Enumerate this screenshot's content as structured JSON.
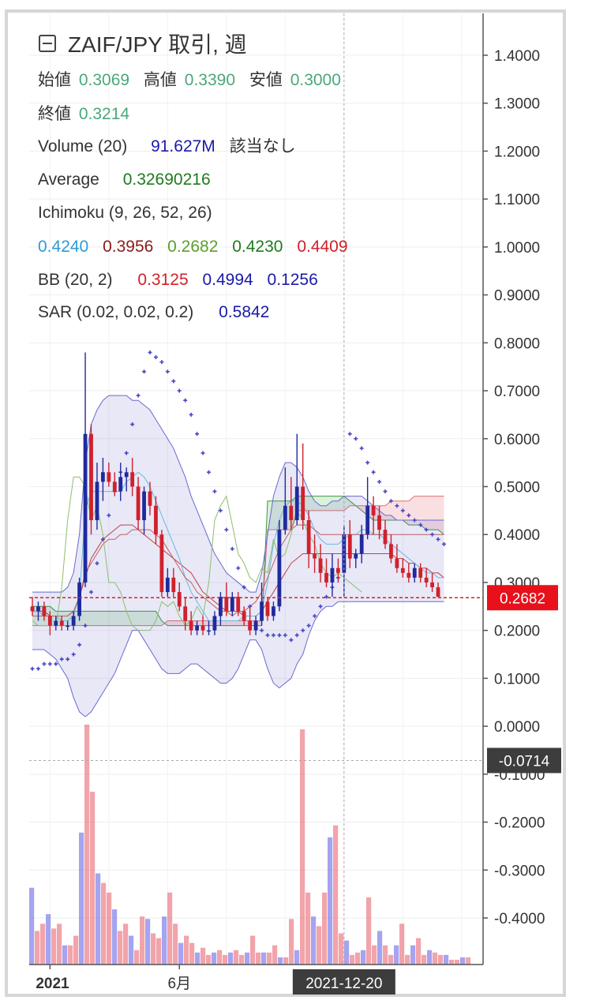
{
  "header": {
    "title": "ZAIF/JPY 取引, 週",
    "collapse_icon": "minus-square-icon"
  },
  "legend": {
    "ohlc": {
      "open_label": "始値",
      "open_value": "0.3069",
      "high_label": "高値",
      "high_value": "0.3390",
      "low_label": "安値",
      "low_value": "0.3000",
      "close_label": "終値",
      "close_value": "0.3214"
    },
    "volume": {
      "label": "Volume (20)",
      "value": "91.627M",
      "extra": "該当なし"
    },
    "average": {
      "label": "Average",
      "value": "0.32690216"
    },
    "ichimoku": {
      "label": "Ichimoku (9, 26, 52, 26)",
      "values": [
        "0.4240",
        "0.3956",
        "0.2682",
        "0.4230",
        "0.4409"
      ]
    },
    "bb": {
      "label": "BB (20, 2)",
      "values": [
        "0.3125",
        "0.4994",
        "0.1256"
      ]
    },
    "sar": {
      "label": "SAR (0.02, 0.02, 0.2)",
      "value": "0.5842"
    }
  },
  "colors": {
    "up": "#1f2a9e",
    "down": "#d0212b",
    "ohlc_value": "#4aa87a",
    "volume_value": "#1a1aa8",
    "average_value": "#1f7a1f",
    "ichimoku": [
      "#2e9ad8",
      "#8b1a1a",
      "#5aa02c",
      "#1f7a1f",
      "#d0212b"
    ],
    "bb_values": [
      "#d0212b",
      "#1a1aa8",
      "#1a1aa8"
    ],
    "sar_value": "#1a1aa8",
    "current_price_bg": "#e8101a",
    "crosshair_bg": "#3d3d3d"
  },
  "chart_data": {
    "type": "candlestick",
    "title": "ZAIF/JPY 取引, 週",
    "y_axis": {
      "ticks": [
        "1.4000",
        "1.3000",
        "1.2000",
        "1.1000",
        "1.0000",
        "0.9000",
        "0.8000",
        "0.7000",
        "0.6000",
        "0.5000",
        "0.4000",
        "0.3000",
        "0.2000",
        "0.1000",
        "0.0000",
        "-0.1000",
        "-0.2000",
        "-0.3000",
        "-0.4000"
      ],
      "tick_values": [
        1.4,
        1.3,
        1.2,
        1.1,
        1.0,
        0.9,
        0.8,
        0.7,
        0.6,
        0.5,
        0.4,
        0.3,
        0.2,
        0.1,
        0.0,
        -0.1,
        -0.2,
        -0.3,
        -0.4
      ],
      "range": [
        -0.49,
        1.5
      ]
    },
    "x_axis": {
      "labels": [
        {
          "text": "2021",
          "bar": 3
        },
        {
          "text": "6月",
          "bar": 25
        }
      ],
      "crosshair_label": "2021-12-20",
      "crosshair_bar": 53
    },
    "current_price": {
      "value": 0.2682,
      "label": "0.2682"
    },
    "crosshair_price": {
      "value": -0.0714,
      "label": "-0.0714"
    },
    "candles": [
      [
        0.25,
        0.27,
        0.23,
        0.24
      ],
      [
        0.24,
        0.26,
        0.22,
        0.25
      ],
      [
        0.25,
        0.26,
        0.22,
        0.23
      ],
      [
        0.23,
        0.24,
        0.19,
        0.21
      ],
      [
        0.21,
        0.23,
        0.2,
        0.22
      ],
      [
        0.22,
        0.23,
        0.2,
        0.21
      ],
      [
        0.21,
        0.22,
        0.2,
        0.21
      ],
      [
        0.21,
        0.24,
        0.2,
        0.23
      ],
      [
        0.23,
        0.31,
        0.22,
        0.3
      ],
      [
        0.3,
        0.78,
        0.29,
        0.61
      ],
      [
        0.61,
        0.63,
        0.4,
        0.43
      ],
      [
        0.43,
        0.55,
        0.41,
        0.51
      ],
      [
        0.51,
        0.56,
        0.47,
        0.53
      ],
      [
        0.53,
        0.55,
        0.5,
        0.51
      ],
      [
        0.51,
        0.53,
        0.48,
        0.49
      ],
      [
        0.49,
        0.55,
        0.47,
        0.52
      ],
      [
        0.52,
        0.54,
        0.49,
        0.53
      ],
      [
        0.53,
        0.56,
        0.48,
        0.5
      ],
      [
        0.5,
        0.52,
        0.41,
        0.43
      ],
      [
        0.43,
        0.5,
        0.4,
        0.49
      ],
      [
        0.49,
        0.51,
        0.44,
        0.46
      ],
      [
        0.46,
        0.48,
        0.38,
        0.4
      ],
      [
        0.4,
        0.41,
        0.27,
        0.28
      ],
      [
        0.28,
        0.33,
        0.27,
        0.31
      ],
      [
        0.31,
        0.33,
        0.27,
        0.28
      ],
      [
        0.28,
        0.3,
        0.24,
        0.25
      ],
      [
        0.25,
        0.27,
        0.2,
        0.22
      ],
      [
        0.22,
        0.24,
        0.19,
        0.2
      ],
      [
        0.2,
        0.22,
        0.19,
        0.21
      ],
      [
        0.21,
        0.23,
        0.19,
        0.2
      ],
      [
        0.2,
        0.22,
        0.19,
        0.2
      ],
      [
        0.2,
        0.24,
        0.19,
        0.23
      ],
      [
        0.23,
        0.28,
        0.21,
        0.27
      ],
      [
        0.27,
        0.3,
        0.23,
        0.24
      ],
      [
        0.24,
        0.28,
        0.23,
        0.27
      ],
      [
        0.27,
        0.28,
        0.23,
        0.24
      ],
      [
        0.24,
        0.25,
        0.21,
        0.22
      ],
      [
        0.22,
        0.25,
        0.19,
        0.2
      ],
      [
        0.2,
        0.23,
        0.19,
        0.22
      ],
      [
        0.22,
        0.3,
        0.21,
        0.26
      ],
      [
        0.26,
        0.27,
        0.22,
        0.23
      ],
      [
        0.23,
        0.26,
        0.22,
        0.25
      ],
      [
        0.25,
        0.43,
        0.24,
        0.41
      ],
      [
        0.41,
        0.54,
        0.4,
        0.46
      ],
      [
        0.46,
        0.52,
        0.41,
        0.43
      ],
      [
        0.43,
        0.61,
        0.42,
        0.5
      ],
      [
        0.5,
        0.59,
        0.41,
        0.43
      ],
      [
        0.43,
        0.45,
        0.33,
        0.36
      ],
      [
        0.36,
        0.4,
        0.32,
        0.35
      ],
      [
        0.35,
        0.38,
        0.3,
        0.32
      ],
      [
        0.32,
        0.35,
        0.29,
        0.3
      ],
      [
        0.3,
        0.36,
        0.27,
        0.33
      ],
      [
        0.33,
        0.35,
        0.3,
        0.32
      ],
      [
        0.32,
        0.42,
        0.27,
        0.4
      ],
      [
        0.4,
        0.43,
        0.33,
        0.35
      ],
      [
        0.35,
        0.37,
        0.33,
        0.36
      ],
      [
        0.36,
        0.42,
        0.34,
        0.4
      ],
      [
        0.4,
        0.52,
        0.39,
        0.46
      ],
      [
        0.46,
        0.48,
        0.4,
        0.44
      ],
      [
        0.44,
        0.46,
        0.39,
        0.41
      ],
      [
        0.41,
        0.43,
        0.37,
        0.38
      ],
      [
        0.38,
        0.4,
        0.34,
        0.35
      ],
      [
        0.35,
        0.38,
        0.32,
        0.33
      ],
      [
        0.33,
        0.35,
        0.31,
        0.32
      ],
      [
        0.32,
        0.34,
        0.3,
        0.31
      ],
      [
        0.31,
        0.34,
        0.3,
        0.33
      ],
      [
        0.33,
        0.34,
        0.3,
        0.31
      ],
      [
        0.31,
        0.33,
        0.29,
        0.3
      ],
      [
        0.3,
        0.32,
        0.28,
        0.29
      ],
      [
        0.29,
        0.3,
        0.27,
        0.27
      ]
    ],
    "volume": [
      0.32,
      0.14,
      0.17,
      0.21,
      0.15,
      0.17,
      0.08,
      0.08,
      0.12,
      0.55,
      1.0,
      0.72,
      0.38,
      0.34,
      0.3,
      0.23,
      0.14,
      0.17,
      0.12,
      0.06,
      0.2,
      0.19,
      0.13,
      0.11,
      0.2,
      0.3,
      0.17,
      0.09,
      0.12,
      0.09,
      0.05,
      0.07,
      0.04,
      0.05,
      0.06,
      0.04,
      0.05,
      0.06,
      0.04,
      0.05,
      0.12,
      0.05,
      0.05,
      0.05,
      0.08,
      0.03,
      0.03,
      0.19,
      0.06,
      0.98,
      0.3,
      0.2,
      0.16,
      0.3,
      0.53,
      0.58,
      0.13,
      0.1,
      0.04,
      0.05,
      0.06,
      0.28,
      0.08,
      0.14,
      0.08,
      0.04,
      0.08,
      0.17,
      0.04,
      0.08,
      0.11,
      0.04,
      0.06,
      0.05,
      0.04,
      0.04,
      0.02,
      0.02,
      0.03,
      0.03
    ],
    "sar": [
      0.12,
      0.12,
      0.13,
      0.13,
      0.13,
      0.14,
      0.14,
      0.15,
      0.17,
      0.21,
      0.28,
      0.34,
      0.39,
      0.44,
      0.49,
      0.53,
      0.57,
      0.63,
      0.69,
      0.74,
      0.78,
      0.77,
      0.76,
      0.74,
      0.72,
      0.7,
      0.68,
      0.65,
      0.61,
      0.57,
      0.53,
      0.49,
      0.45,
      0.41,
      0.37,
      0.33,
      0.29,
      0.25,
      0.21,
      0.2,
      0.19,
      0.19,
      0.19,
      0.19,
      0.18,
      0.19,
      0.2,
      0.21,
      0.23,
      0.25,
      0.27,
      0.29,
      0.31,
      0.33,
      0.61,
      0.6,
      0.58,
      0.55,
      0.53,
      0.51,
      0.49,
      0.47,
      0.46,
      0.45,
      0.44,
      0.43,
      0.42,
      0.41,
      0.4,
      0.39,
      0.38
    ],
    "bb_upper": [
      0.28,
      0.28,
      0.28,
      0.28,
      0.28,
      0.28,
      0.29,
      0.32,
      0.4,
      0.55,
      0.63,
      0.66,
      0.68,
      0.69,
      0.69,
      0.69,
      0.69,
      0.68,
      0.68,
      0.67,
      0.66,
      0.64,
      0.62,
      0.6,
      0.58,
      0.55,
      0.52,
      0.48,
      0.45,
      0.42,
      0.39,
      0.36,
      0.34,
      0.32,
      0.31,
      0.3,
      0.29,
      0.28,
      0.28,
      0.32,
      0.4,
      0.48,
      0.52,
      0.55,
      0.55,
      0.54,
      0.52,
      0.49,
      0.47,
      0.46,
      0.46,
      0.47,
      0.47,
      0.48,
      0.48,
      0.48,
      0.48,
      0.47,
      0.46,
      0.45,
      0.44,
      0.44,
      0.43,
      0.43,
      0.43,
      0.43,
      0.43,
      0.43,
      0.43,
      0.43,
      0.43
    ],
    "bb_mid": [
      0.24,
      0.24,
      0.24,
      0.23,
      0.23,
      0.23,
      0.23,
      0.24,
      0.27,
      0.31,
      0.35,
      0.37,
      0.39,
      0.4,
      0.41,
      0.42,
      0.42,
      0.42,
      0.41,
      0.4,
      0.39,
      0.38,
      0.37,
      0.36,
      0.35,
      0.34,
      0.33,
      0.32,
      0.3,
      0.28,
      0.27,
      0.26,
      0.25,
      0.24,
      0.24,
      0.24,
      0.23,
      0.23,
      0.23,
      0.24,
      0.26,
      0.28,
      0.3,
      0.32,
      0.34,
      0.35,
      0.36,
      0.36,
      0.36,
      0.36,
      0.36,
      0.36,
      0.36,
      0.36,
      0.36,
      0.36,
      0.36,
      0.36,
      0.36,
      0.36,
      0.36,
      0.36,
      0.35,
      0.35,
      0.34,
      0.34,
      0.33,
      0.33,
      0.32,
      0.32,
      0.31
    ],
    "bb_lower": [
      0.16,
      0.16,
      0.16,
      0.15,
      0.14,
      0.12,
      0.1,
      0.06,
      0.03,
      0.02,
      0.03,
      0.05,
      0.07,
      0.09,
      0.11,
      0.14,
      0.17,
      0.2,
      0.2,
      0.18,
      0.16,
      0.14,
      0.12,
      0.11,
      0.11,
      0.11,
      0.12,
      0.13,
      0.13,
      0.12,
      0.11,
      0.1,
      0.09,
      0.09,
      0.1,
      0.12,
      0.15,
      0.18,
      0.18,
      0.16,
      0.12,
      0.09,
      0.08,
      0.09,
      0.1,
      0.13,
      0.15,
      0.19,
      0.22,
      0.24,
      0.25,
      0.25,
      0.26,
      0.26,
      0.26,
      0.26,
      0.26,
      0.26,
      0.26,
      0.26,
      0.26,
      0.26,
      0.26,
      0.26,
      0.26,
      0.26,
      0.26,
      0.26,
      0.26,
      0.26,
      0.26
    ],
    "cloud_a": [
      0.25,
      0.25,
      0.25,
      0.25,
      0.24,
      0.24,
      0.24,
      0.24,
      0.24,
      0.24,
      0.24,
      0.24,
      0.24,
      0.24,
      0.24,
      0.24,
      0.24,
      0.24,
      0.24,
      0.24,
      0.24,
      0.24,
      0.22,
      0.21,
      0.21,
      0.21,
      0.21,
      0.21,
      0.21,
      0.21,
      0.21,
      0.21,
      0.21,
      0.21,
      0.21,
      0.21,
      0.21,
      0.21,
      0.21,
      0.21,
      0.47,
      0.47,
      0.47,
      0.47,
      0.47,
      0.48,
      0.48,
      0.48,
      0.48,
      0.48,
      0.48,
      0.48,
      0.48,
      0.48,
      0.47,
      0.46,
      0.45,
      0.44,
      0.43,
      0.43,
      0.43,
      0.43,
      0.43,
      0.43,
      0.42,
      0.42,
      0.42,
      0.41,
      0.41,
      0.41,
      0.4
    ],
    "cloud_b": [
      0.21,
      0.21,
      0.21,
      0.21,
      0.21,
      0.21,
      0.21,
      0.21,
      0.21,
      0.21,
      0.21,
      0.21,
      0.21,
      0.21,
      0.21,
      0.21,
      0.21,
      0.21,
      0.21,
      0.21,
      0.21,
      0.21,
      0.21,
      0.22,
      0.22,
      0.22,
      0.22,
      0.22,
      0.22,
      0.22,
      0.22,
      0.22,
      0.22,
      0.22,
      0.22,
      0.22,
      0.22,
      0.22,
      0.22,
      0.22,
      0.41,
      0.41,
      0.41,
      0.41,
      0.41,
      0.45,
      0.45,
      0.45,
      0.45,
      0.45,
      0.45,
      0.45,
      0.45,
      0.45,
      0.46,
      0.46,
      0.46,
      0.46,
      0.46,
      0.46,
      0.46,
      0.47,
      0.47,
      0.47,
      0.47,
      0.48,
      0.48,
      0.48,
      0.48,
      0.48,
      0.48
    ],
    "tenkan": [
      0.24,
      0.24,
      0.23,
      0.23,
      0.23,
      0.22,
      0.22,
      0.23,
      0.27,
      0.45,
      0.49,
      0.49,
      0.49,
      0.49,
      0.49,
      0.49,
      0.51,
      0.52,
      0.53,
      0.52,
      0.5,
      0.47,
      0.44,
      0.41,
      0.38,
      0.35,
      0.31,
      0.28,
      0.26,
      0.24,
      0.22,
      0.22,
      0.22,
      0.22,
      0.22,
      0.22,
      0.23,
      0.23,
      0.23,
      0.24,
      0.3,
      0.38,
      0.43,
      0.46,
      0.47,
      0.47,
      0.46,
      0.44,
      0.41,
      0.39,
      0.38,
      0.38,
      0.38,
      0.39,
      0.4,
      0.4,
      0.41,
      0.41,
      0.4,
      0.4,
      0.39,
      0.38,
      0.37,
      0.36,
      0.35,
      0.34,
      0.33,
      0.32,
      0.32,
      0.31,
      0.31
    ],
    "kijun": [
      0.23,
      0.23,
      0.23,
      0.23,
      0.23,
      0.23,
      0.23,
      0.24,
      0.27,
      0.32,
      0.34,
      0.36,
      0.38,
      0.39,
      0.39,
      0.4,
      0.4,
      0.41,
      0.41,
      0.41,
      0.41,
      0.4,
      0.39,
      0.37,
      0.35,
      0.33,
      0.31,
      0.3,
      0.28,
      0.27,
      0.26,
      0.25,
      0.24,
      0.24,
      0.23,
      0.24,
      0.24,
      0.25,
      0.26,
      0.28,
      0.31,
      0.34,
      0.37,
      0.39,
      0.41,
      0.42,
      0.42,
      0.42,
      0.41,
      0.4,
      0.4,
      0.4,
      0.4,
      0.4,
      0.4,
      0.4,
      0.4,
      0.4,
      0.4,
      0.4,
      0.4,
      0.4,
      0.4,
      0.4,
      0.4,
      0.4,
      0.4,
      0.4,
      0.4,
      0.4,
      0.4
    ],
    "chikou": [
      0.22,
      0.21,
      0.21,
      0.21,
      0.21,
      0.29,
      0.43,
      0.52,
      0.52,
      0.5,
      0.43,
      0.46,
      0.4,
      0.3,
      0.3,
      0.28,
      0.24,
      0.21,
      0.2,
      0.2,
      0.2,
      0.22,
      0.26,
      0.25,
      0.26,
      0.23,
      0.21,
      0.22,
      0.25,
      0.23,
      0.3,
      0.43,
      0.46,
      0.48,
      0.42,
      0.36,
      0.34,
      0.31,
      0.3,
      0.33,
      0.32,
      0.39,
      0.35,
      0.36,
      0.4,
      0.45,
      0.43,
      0.4,
      0.38,
      0.34,
      0.32,
      0.31,
      0.32,
      0.31,
      0.3,
      0.29,
      0.28
    ]
  }
}
